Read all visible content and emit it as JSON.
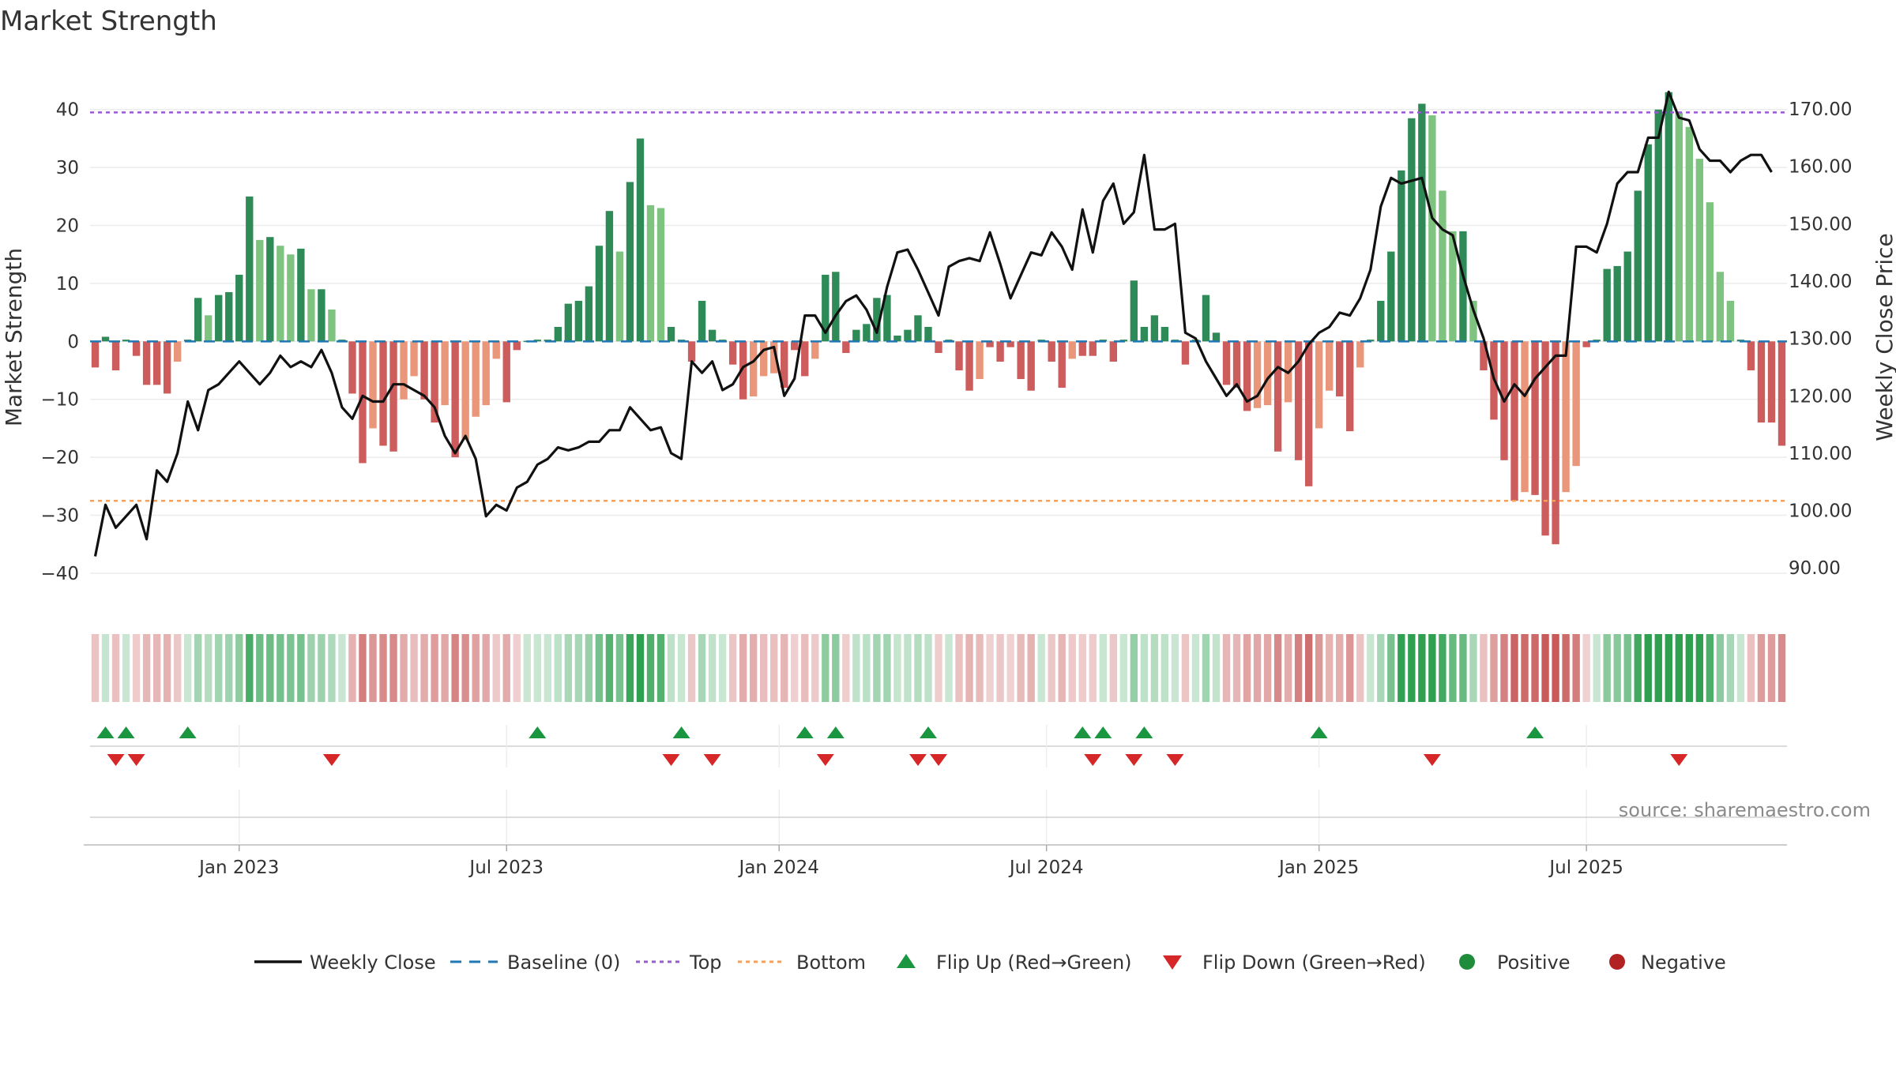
{
  "chart_data": {
    "type": "bar+line",
    "title": "Market Strength",
    "y_left_label": "Market Strength",
    "y_right_label": "Weekly Close Price",
    "y_left_range": [
      -46,
      48
    ],
    "y_right_range": [
      83,
      178
    ],
    "y_left_ticks": [
      "40",
      "30",
      "20",
      "10",
      "0",
      "−10",
      "−20",
      "−30",
      "−40"
    ],
    "y_right_ticks": [
      "170.00",
      "160.00",
      "150.00",
      "140.00",
      "130.00",
      "120.00",
      "110.00",
      "100.00",
      "90.00"
    ],
    "x_ticks": [
      {
        "label": "Jan 2023",
        "week": 14.5
      },
      {
        "label": "Jul 2023",
        "week": 40.5
      },
      {
        "label": "Jan 2024",
        "week": 67
      },
      {
        "label": "Jul 2024",
        "week": 93
      },
      {
        "label": "Jan 2025",
        "week": 119.5
      },
      {
        "label": "Jul 2025",
        "week": 145.5
      }
    ],
    "top_threshold": 39.5,
    "bottom_threshold": -27.5,
    "source": "source: sharemaestro.com",
    "legend": [
      "Weekly Close",
      "Baseline (0)",
      "Top",
      "Bottom",
      "Flip Up (Red→Green)",
      "Flip Down (Green→Red)",
      "Positive",
      "Negative"
    ],
    "colors": {
      "strong_green": "#2e8b57",
      "light_green": "#7fc381",
      "strong_red": "#cd5c5c",
      "light_red": "#e9967a",
      "close_line": "#111111",
      "baseline": "#1f77b4",
      "top_line": "#9b59d6",
      "bottom_line": "#f0a060",
      "flip_up": "#1a9641",
      "flip_down": "#d62728",
      "positive_dot": "#1e8c3a",
      "negative_dot": "#b22222"
    },
    "strength": [
      -4.5,
      0.8,
      -5,
      0.3,
      -2.5,
      -7.5,
      -7.5,
      -9,
      -3.5,
      0.3,
      7.5,
      4.5,
      8,
      8.5,
      11.5,
      25,
      17.5,
      18,
      16.5,
      15,
      16,
      9,
      9,
      5.5,
      0.3,
      -9,
      -21,
      -15,
      -18,
      -19,
      -10,
      -6,
      -10,
      -14,
      -11,
      -20,
      -17,
      -13,
      -11,
      -3,
      -10.5,
      -1.5,
      0.1,
      0.3,
      0.3,
      2.5,
      6.5,
      7,
      9.5,
      16.5,
      22.5,
      15.5,
      27.5,
      35,
      23.5,
      23,
      2.5,
      0.3,
      -3.5,
      7,
      2,
      0.3,
      -4,
      -10,
      -9.5,
      -6,
      -5.5,
      -8,
      -1.5,
      -6,
      -3,
      11.5,
      12,
      -2,
      2,
      3,
      7.5,
      8,
      1,
      2,
      4.5,
      2.5,
      -2,
      0.3,
      -5,
      -8.5,
      -6.5,
      -1,
      -3.5,
      -1,
      -6.5,
      -8.5,
      0.3,
      -3.5,
      -8,
      -3,
      -2.5,
      -2.5,
      0.3,
      -3.5,
      0.3,
      10.5,
      2.5,
      4.5,
      2.5,
      0.3,
      -4,
      0.3,
      8,
      1.5,
      -7.5,
      -8,
      -12,
      -11.5,
      -11,
      -19,
      -10.5,
      -20.5,
      -25,
      -15,
      -8.5,
      -9.5,
      -15.5,
      -4.5,
      0.3,
      7,
      15.5,
      29.5,
      38.5,
      41,
      39,
      26,
      19,
      19,
      7,
      -5,
      -13.5,
      -20.5,
      -27.5,
      -26,
      -26.5,
      -33.5,
      -35,
      -26,
      -21.5,
      -1,
      0.3,
      12.5,
      13,
      15.5,
      26,
      34,
      40,
      43,
      39.5,
      37,
      31.5,
      24,
      12,
      7,
      0.3,
      -5,
      -14,
      -14,
      -18
    ],
    "weekly_close": [
      92,
      101,
      97,
      99,
      101,
      95,
      107,
      105,
      110,
      119,
      114,
      121,
      122,
      124,
      126,
      124,
      122,
      124,
      127,
      125,
      126,
      125,
      128,
      124,
      118,
      116,
      120,
      119,
      119,
      122,
      122,
      121,
      120,
      118,
      113,
      110,
      113,
      109,
      99,
      101,
      100,
      104,
      105,
      108,
      109,
      111,
      110.5,
      111,
      112,
      112,
      114,
      114,
      118,
      116,
      114,
      114.5,
      110,
      109,
      126,
      124,
      126,
      121,
      122,
      125,
      126,
      128,
      128.5,
      120,
      123,
      134,
      134,
      131,
      134,
      136.5,
      137.5,
      135,
      131,
      139,
      145,
      145.5,
      142,
      138,
      134,
      142.5,
      143.5,
      144,
      143.5,
      148.5,
      143,
      137,
      141,
      145,
      144.5,
      148.5,
      146,
      142,
      152.5,
      145,
      154,
      157,
      150,
      152,
      162,
      149,
      149,
      150,
      131,
      130,
      126,
      123,
      120,
      122,
      119,
      120,
      123,
      125,
      124,
      126,
      129,
      131,
      132,
      134.5,
      134,
      137,
      142,
      153,
      158,
      157,
      157.5,
      158,
      151,
      149,
      148,
      141,
      135,
      130,
      123,
      119,
      122,
      120,
      123,
      125,
      127,
      127,
      146,
      146,
      145,
      150,
      157,
      159,
      159,
      165,
      165,
      173,
      168.5,
      168,
      163,
      161,
      161,
      159,
      161,
      162,
      162,
      159
    ],
    "flip_up_weeks": [
      1,
      3,
      9,
      43,
      57,
      69,
      72,
      81,
      96,
      98,
      102,
      119,
      140
    ],
    "flip_down_weeks": [
      2,
      4,
      23,
      56,
      60,
      71,
      80,
      82,
      97,
      101,
      105,
      130,
      154
    ]
  }
}
